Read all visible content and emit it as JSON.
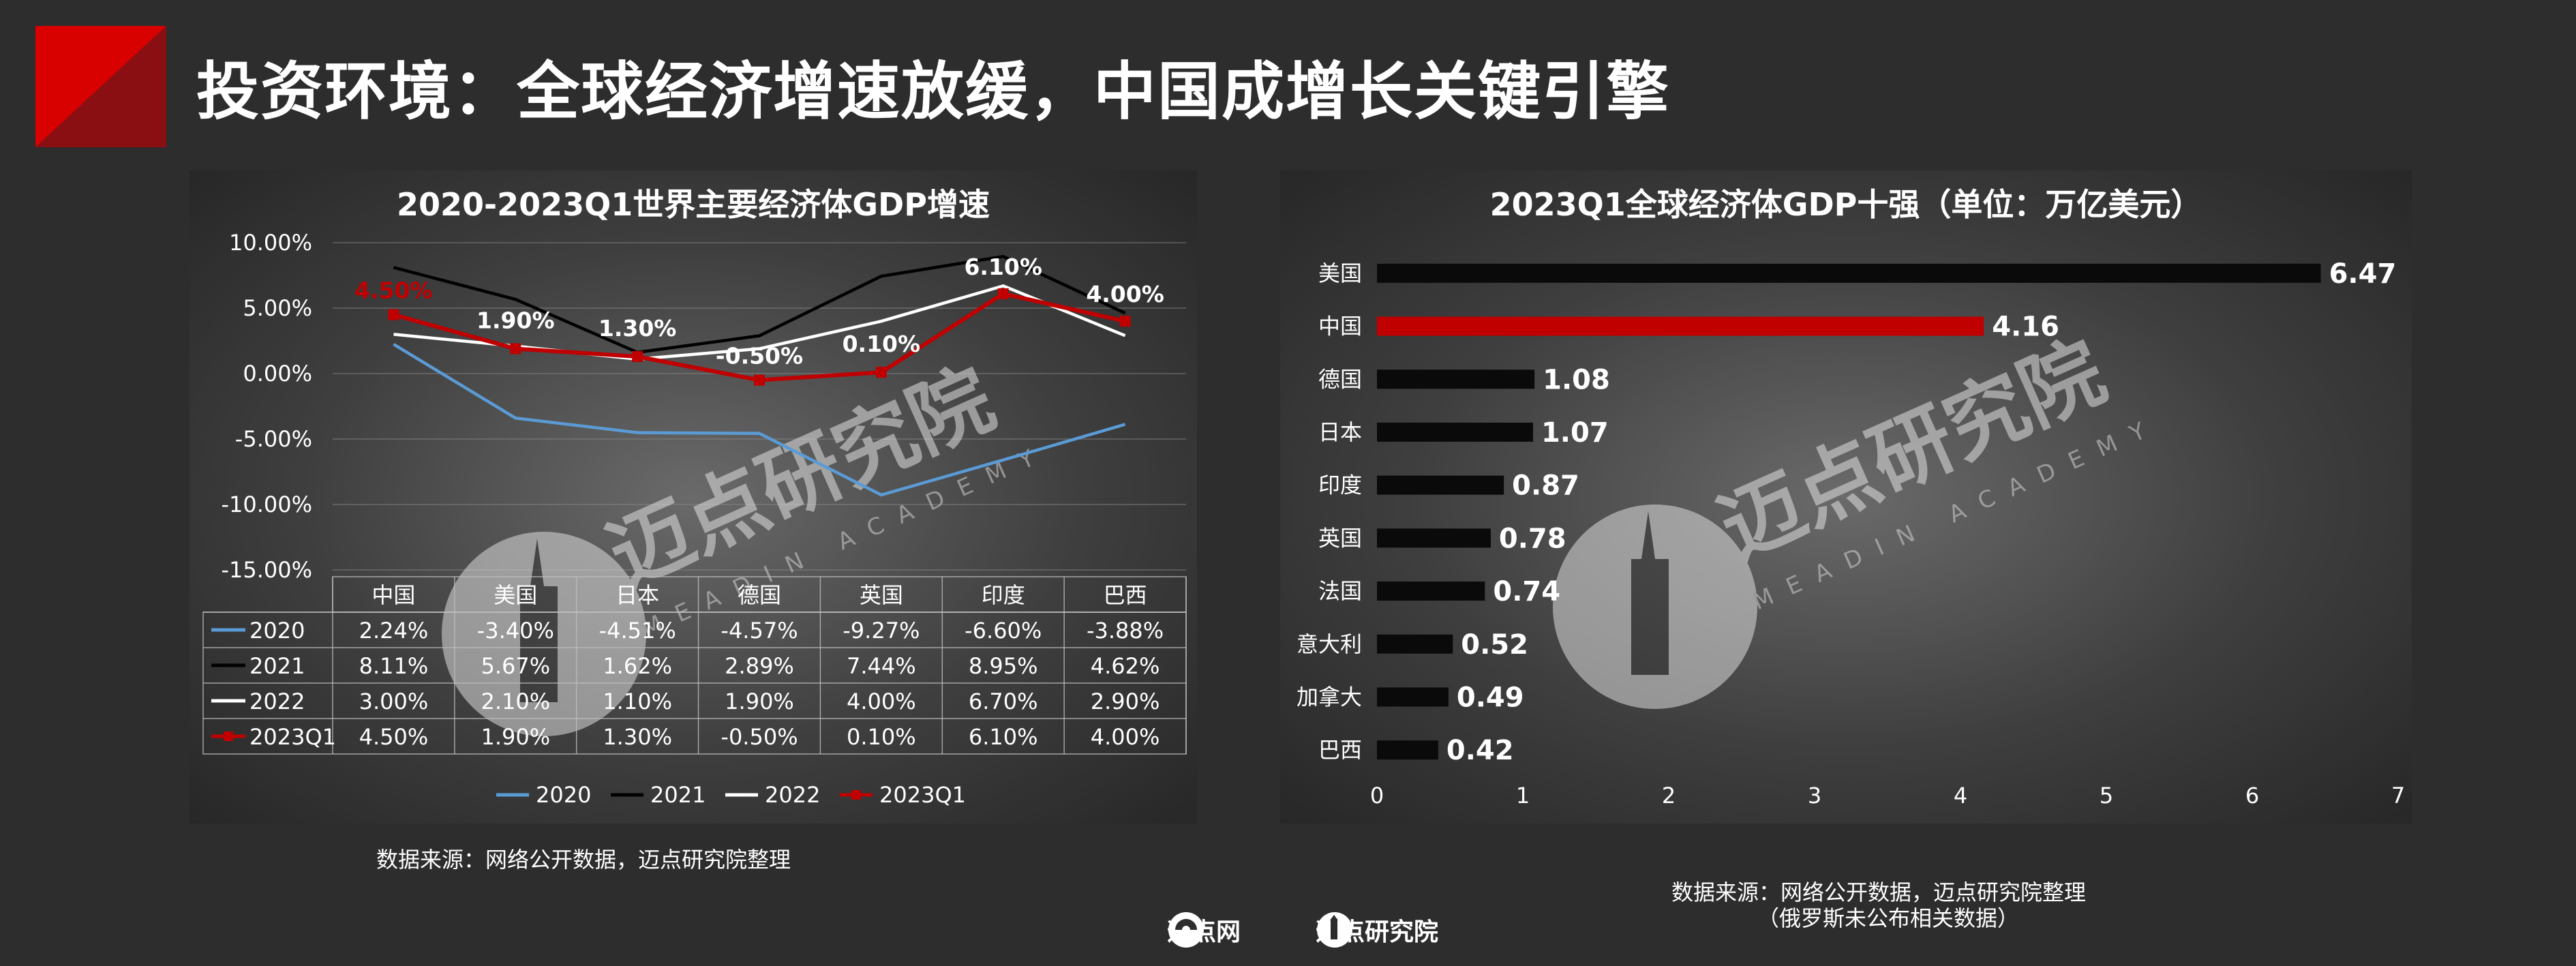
{
  "page": {
    "title": "投资环境：全球经济增速放缓，中国成增长关键引擎",
    "brand_color": "#c00000"
  },
  "watermark": {
    "text": "迈点研究院",
    "sub": "MEADIN ACADEMY"
  },
  "left_chart": {
    "source": "数据来源：网络公开数据，迈点研究院整理"
  },
  "right_chart": {
    "source_line1": "数据来源：网络公开数据，迈点研究院整理",
    "source_line2": "（俄罗斯未公布相关数据）"
  },
  "footer": {
    "brand1": "迈点网",
    "brand2": "迈点研究院"
  },
  "chart_data": [
    {
      "type": "line",
      "title": "2020-2023Q1世界主要经济体GDP增速",
      "categories": [
        "中国",
        "美国",
        "日本",
        "德国",
        "英国",
        "印度",
        "巴西"
      ],
      "y_ticks": [
        "10.00%",
        "5.00%",
        "0.00%",
        "-5.00%",
        "-10.00%",
        "-15.00%"
      ],
      "ylim": [
        -15,
        10
      ],
      "legend_position": "bottom",
      "data_table": true,
      "series": [
        {
          "name": "2020",
          "color": "#5b9bd5",
          "values": [
            2.24,
            -3.4,
            -4.51,
            -4.57,
            -9.27,
            -6.6,
            -3.88
          ],
          "labels": [
            "2.24%",
            "-3.40%",
            "-4.51%",
            "-4.57%",
            "-9.27%",
            "-6.60%",
            "-3.88%"
          ]
        },
        {
          "name": "2021",
          "color": "#000000",
          "values": [
            8.11,
            5.67,
            1.62,
            2.89,
            7.44,
            8.95,
            4.62
          ],
          "labels": [
            "8.11%",
            "5.67%",
            "1.62%",
            "2.89%",
            "7.44%",
            "8.95%",
            "4.62%"
          ]
        },
        {
          "name": "2022",
          "color": "#ffffff",
          "values": [
            3.0,
            2.1,
            1.1,
            1.9,
            4.0,
            6.7,
            2.9
          ],
          "labels": [
            "3.00%",
            "2.10%",
            "1.10%",
            "1.90%",
            "4.00%",
            "6.70%",
            "2.90%"
          ]
        },
        {
          "name": "2023Q1",
          "color": "#c00000",
          "values": [
            4.5,
            1.9,
            1.3,
            -0.5,
            0.1,
            6.1,
            4.0
          ],
          "labels": [
            "4.50%",
            "1.90%",
            "1.30%",
            "-0.50%",
            "0.10%",
            "6.10%",
            "4.00%"
          ]
        }
      ]
    },
    {
      "type": "bar",
      "orientation": "horizontal",
      "title": "2023Q1全球经济体GDP十强（单位：万亿美元）",
      "categories": [
        "美国",
        "中国",
        "德国",
        "日本",
        "印度",
        "英国",
        "法国",
        "意大利",
        "加拿大",
        "巴西"
      ],
      "values": [
        6.47,
        4.16,
        1.08,
        1.07,
        0.87,
        0.78,
        0.74,
        0.52,
        0.49,
        0.42
      ],
      "value_labels": [
        "6.47",
        "4.16",
        "1.08",
        "1.07",
        "0.87",
        "0.78",
        "0.74",
        "0.52",
        "0.49",
        "0.42"
      ],
      "highlight": "中国",
      "bar_color": "#0a0a0a",
      "highlight_color": "#c00000",
      "x_ticks": [
        "0",
        "1",
        "2",
        "3",
        "4",
        "5",
        "6",
        "7"
      ],
      "xlim": [
        0,
        7
      ]
    }
  ]
}
